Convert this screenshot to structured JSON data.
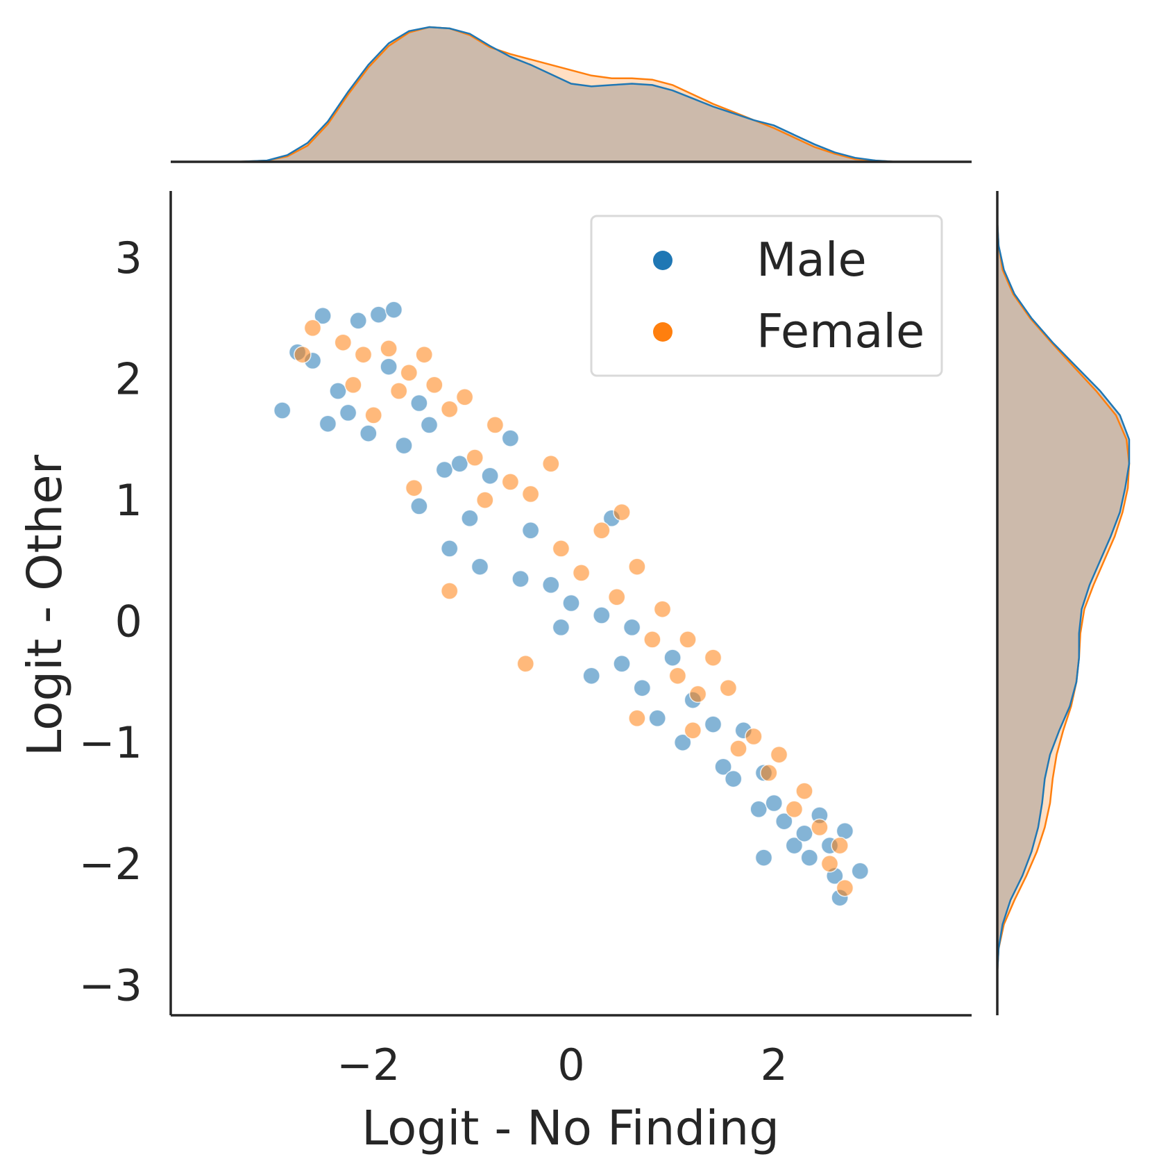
{
  "chart_data": {
    "type": "scatter",
    "kind": "joint plot with marginal density curves",
    "xlabel": "Logit - No Finding",
    "ylabel": "Logit - Other",
    "xlim": [
      -3.95,
      3.95
    ],
    "ylim": [
      -3.25,
      3.55
    ],
    "x_ticks": [
      -2,
      0,
      2
    ],
    "y_ticks": [
      -3,
      -2,
      -1,
      0,
      1,
      2,
      3
    ],
    "x_tick_labels": [
      "−2",
      "0",
      "2"
    ],
    "y_tick_labels": [
      "−3",
      "−2",
      "−1",
      "0",
      "1",
      "2",
      "3"
    ],
    "grid": false,
    "legend_position": "top-right",
    "marginals": "density curves on top (x) and right (y) axes",
    "series": [
      {
        "name": "Male",
        "color": "#1f77b4",
        "points": [
          [
            -2.85,
            1.74
          ],
          [
            -2.7,
            2.22
          ],
          [
            -2.55,
            2.15
          ],
          [
            -2.45,
            2.52
          ],
          [
            -2.4,
            1.63
          ],
          [
            -2.3,
            1.9
          ],
          [
            -2.2,
            1.72
          ],
          [
            -2.1,
            2.48
          ],
          [
            -2.0,
            1.55
          ],
          [
            -1.9,
            2.53
          ],
          [
            -1.8,
            2.1
          ],
          [
            -1.75,
            2.57
          ],
          [
            -1.65,
            1.45
          ],
          [
            -1.5,
            1.8
          ],
          [
            -1.5,
            0.95
          ],
          [
            -1.4,
            1.62
          ],
          [
            -1.25,
            1.25
          ],
          [
            -1.2,
            0.6
          ],
          [
            -1.1,
            1.3
          ],
          [
            -1.0,
            0.85
          ],
          [
            -0.9,
            0.45
          ],
          [
            -0.8,
            1.2
          ],
          [
            -0.6,
            1.51
          ],
          [
            -0.5,
            0.35
          ],
          [
            -0.4,
            0.75
          ],
          [
            -0.2,
            0.3
          ],
          [
            -0.1,
            -0.05
          ],
          [
            0.0,
            0.15
          ],
          [
            0.2,
            -0.45
          ],
          [
            0.3,
            0.05
          ],
          [
            0.4,
            0.85
          ],
          [
            0.5,
            -0.35
          ],
          [
            0.6,
            -0.05
          ],
          [
            0.7,
            -0.55
          ],
          [
            0.85,
            -0.8
          ],
          [
            1.0,
            -0.3
          ],
          [
            1.1,
            -1.0
          ],
          [
            1.2,
            -0.65
          ],
          [
            1.4,
            -0.85
          ],
          [
            1.5,
            -1.2
          ],
          [
            1.6,
            -1.3
          ],
          [
            1.7,
            -0.9
          ],
          [
            1.85,
            -1.55
          ],
          [
            1.9,
            -1.25
          ],
          [
            2.0,
            -1.5
          ],
          [
            2.1,
            -1.65
          ],
          [
            2.2,
            -1.85
          ],
          [
            2.3,
            -1.75
          ],
          [
            2.35,
            -1.95
          ],
          [
            2.45,
            -1.6
          ],
          [
            2.55,
            -1.85
          ],
          [
            2.6,
            -2.1
          ],
          [
            2.65,
            -2.28
          ],
          [
            2.7,
            -1.73
          ],
          [
            2.85,
            -2.06
          ],
          [
            1.9,
            -1.95
          ]
        ]
      },
      {
        "name": "Female",
        "color": "#ff7f0e",
        "points": [
          [
            -2.55,
            2.42
          ],
          [
            -2.65,
            2.2
          ],
          [
            -2.25,
            2.3
          ],
          [
            -2.15,
            1.95
          ],
          [
            -2.05,
            2.2
          ],
          [
            -1.95,
            1.7
          ],
          [
            -1.8,
            2.25
          ],
          [
            -1.7,
            1.9
          ],
          [
            -1.6,
            2.05
          ],
          [
            -1.45,
            2.2
          ],
          [
            -1.35,
            1.95
          ],
          [
            -1.2,
            1.75
          ],
          [
            -1.05,
            1.85
          ],
          [
            -0.95,
            1.35
          ],
          [
            -0.75,
            1.62
          ],
          [
            -1.2,
            0.25
          ],
          [
            -0.85,
            1.0
          ],
          [
            -0.6,
            1.15
          ],
          [
            -0.4,
            1.05
          ],
          [
            -0.2,
            1.3
          ],
          [
            -0.1,
            0.6
          ],
          [
            0.1,
            0.4
          ],
          [
            0.3,
            0.75
          ],
          [
            0.5,
            0.9
          ],
          [
            0.45,
            0.2
          ],
          [
            0.65,
            0.45
          ],
          [
            0.8,
            -0.15
          ],
          [
            0.9,
            0.1
          ],
          [
            1.05,
            -0.45
          ],
          [
            1.15,
            -0.15
          ],
          [
            1.25,
            -0.6
          ],
          [
            1.4,
            -0.3
          ],
          [
            1.55,
            -0.55
          ],
          [
            1.65,
            -1.05
          ],
          [
            1.8,
            -0.95
          ],
          [
            1.95,
            -1.25
          ],
          [
            2.05,
            -1.1
          ],
          [
            2.2,
            -1.55
          ],
          [
            2.3,
            -1.4
          ],
          [
            2.45,
            -1.7
          ],
          [
            2.55,
            -2.0
          ],
          [
            2.65,
            -1.85
          ],
          [
            2.7,
            -2.2
          ],
          [
            -0.45,
            -0.35
          ],
          [
            0.65,
            -0.8
          ],
          [
            1.2,
            -0.9
          ],
          [
            -1.55,
            1.1
          ]
        ]
      }
    ],
    "x_density": {
      "x": [
        -3.3,
        -3.0,
        -2.8,
        -2.6,
        -2.4,
        -2.2,
        -2.0,
        -1.8,
        -1.6,
        -1.4,
        -1.2,
        -1.0,
        -0.8,
        -0.6,
        -0.4,
        -0.2,
        0.0,
        0.2,
        0.4,
        0.6,
        0.8,
        1.0,
        1.2,
        1.4,
        1.6,
        1.8,
        2.0,
        2.2,
        2.4,
        2.6,
        2.8,
        3.0,
        3.2,
        3.4
      ],
      "male": [
        0.0,
        0.01,
        0.05,
        0.14,
        0.3,
        0.52,
        0.72,
        0.88,
        0.97,
        1.0,
        0.99,
        0.95,
        0.86,
        0.78,
        0.72,
        0.65,
        0.58,
        0.56,
        0.57,
        0.58,
        0.57,
        0.53,
        0.47,
        0.41,
        0.36,
        0.31,
        0.27,
        0.2,
        0.13,
        0.07,
        0.03,
        0.01,
        0.0,
        0.0
      ],
      "female": [
        0.0,
        0.01,
        0.04,
        0.12,
        0.28,
        0.5,
        0.7,
        0.86,
        0.96,
        1.0,
        0.99,
        0.94,
        0.85,
        0.8,
        0.76,
        0.72,
        0.68,
        0.64,
        0.62,
        0.62,
        0.61,
        0.57,
        0.5,
        0.43,
        0.37,
        0.31,
        0.25,
        0.18,
        0.11,
        0.06,
        0.02,
        0.01,
        0.0,
        0.0
      ]
    },
    "y_density": {
      "y": [
        -2.9,
        -2.7,
        -2.5,
        -2.3,
        -2.1,
        -1.9,
        -1.7,
        -1.5,
        -1.3,
        -1.1,
        -0.9,
        -0.7,
        -0.5,
        -0.3,
        -0.1,
        0.1,
        0.3,
        0.5,
        0.7,
        0.9,
        1.1,
        1.3,
        1.5,
        1.7,
        1.9,
        2.1,
        2.3,
        2.5,
        2.7,
        2.9,
        3.1,
        3.3
      ],
      "male": [
        0.0,
        0.01,
        0.04,
        0.1,
        0.19,
        0.26,
        0.31,
        0.34,
        0.36,
        0.4,
        0.47,
        0.55,
        0.6,
        0.62,
        0.62,
        0.64,
        0.7,
        0.78,
        0.86,
        0.93,
        0.97,
        1.0,
        1.0,
        0.93,
        0.78,
        0.6,
        0.42,
        0.26,
        0.13,
        0.05,
        0.01,
        0.0
      ],
      "female": [
        0.0,
        0.01,
        0.05,
        0.13,
        0.22,
        0.3,
        0.36,
        0.4,
        0.42,
        0.45,
        0.5,
        0.56,
        0.6,
        0.62,
        0.63,
        0.66,
        0.73,
        0.81,
        0.89,
        0.95,
        0.99,
        1.0,
        0.98,
        0.9,
        0.75,
        0.58,
        0.41,
        0.25,
        0.12,
        0.04,
        0.01,
        0.0
      ]
    }
  }
}
